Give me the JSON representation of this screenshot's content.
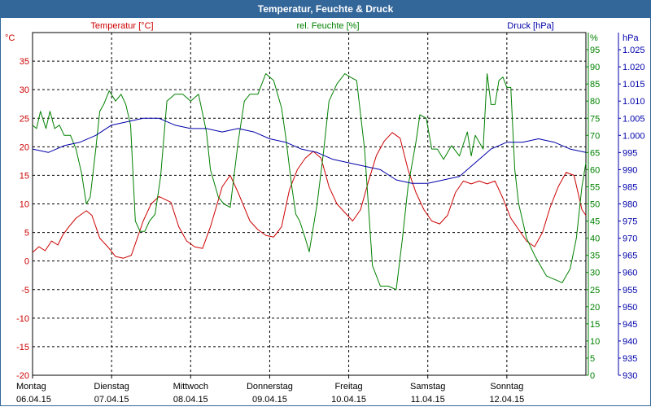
{
  "window": {
    "title": "Temperatur, Feuchte & Druck"
  },
  "colors": {
    "titlebar": "#336699",
    "temperature": "#cc0000",
    "humidity": "#008000",
    "pressure": "#0000aa",
    "grid": "#000000"
  },
  "chart_data": {
    "type": "line",
    "title": "Temperatur, Feuchte & Druck",
    "legend": {
      "temperature": "Temperatur [°C]",
      "humidity": "rel. Feuchte [%]",
      "pressure": "Druck [hPa]"
    },
    "axes": {
      "left": {
        "unit": "°C",
        "range": [
          -20,
          40
        ],
        "ticks": [
          "35",
          "30",
          "25",
          "20",
          "15",
          "10",
          "5",
          "0",
          "-5",
          "-10",
          "-15",
          "-20"
        ],
        "tick_values": [
          35,
          30,
          25,
          20,
          15,
          10,
          5,
          0,
          -5,
          -10,
          -15,
          -20
        ]
      },
      "mid": {
        "unit": "%",
        "range": [
          0,
          100
        ],
        "ticks": [
          "95",
          "90",
          "85",
          "80",
          "75",
          "70",
          "65",
          "60",
          "55",
          "50",
          "45",
          "40",
          "35",
          "30",
          "25",
          "20",
          "15",
          "10",
          "5",
          "0"
        ],
        "tick_values": [
          95,
          90,
          85,
          80,
          75,
          70,
          65,
          60,
          55,
          50,
          45,
          40,
          35,
          30,
          25,
          20,
          15,
          10,
          5,
          0
        ]
      },
      "right": {
        "unit": "hPa",
        "range": [
          930,
          1030
        ],
        "ticks": [
          "1.025",
          "1.020",
          "1.015",
          "1.010",
          "1.005",
          "1.000",
          "995",
          "990",
          "985",
          "980",
          "975",
          "970",
          "965",
          "960",
          "955",
          "950",
          "945",
          "940",
          "935",
          "930"
        ],
        "tick_values": [
          1025,
          1020,
          1015,
          1010,
          1005,
          1000,
          995,
          990,
          985,
          980,
          975,
          970,
          965,
          960,
          955,
          950,
          945,
          940,
          935,
          930
        ]
      }
    },
    "x_range_days": [
      0,
      7
    ],
    "days": [
      {
        "name": "Montag",
        "date": "06.04.15"
      },
      {
        "name": "Dienstag",
        "date": "07.04.15"
      },
      {
        "name": "Mittwoch",
        "date": "08.04.15"
      },
      {
        "name": "Donnerstag",
        "date": "09.04.15"
      },
      {
        "name": "Freitag",
        "date": "10.04.15"
      },
      {
        "name": "Samstag",
        "date": "11.04.15"
      },
      {
        "name": "Sonntag",
        "date": "12.04.15"
      }
    ],
    "series": [
      {
        "name": "Temperatur",
        "axis": "left",
        "color": "#cc0000",
        "x": [
          0,
          0.08,
          0.16,
          0.24,
          0.32,
          0.38,
          0.46,
          0.55,
          0.68,
          0.75,
          0.85,
          0.95,
          1.05,
          1.15,
          1.25,
          1.4,
          1.5,
          1.6,
          1.75,
          1.85,
          1.95,
          2.05,
          2.15,
          2.25,
          2.4,
          2.5,
          2.6,
          2.75,
          2.85,
          2.95,
          3.05,
          3.15,
          3.25,
          3.35,
          3.45,
          3.55,
          3.65,
          3.75,
          3.85,
          3.95,
          4.05,
          4.15,
          4.25,
          4.35,
          4.45,
          4.55,
          4.65,
          4.75,
          4.85,
          4.95,
          5.05,
          5.15,
          5.25,
          5.35,
          5.45,
          5.55,
          5.65,
          5.75,
          5.85,
          5.95,
          6.05,
          6.15,
          6.25,
          6.35,
          6.45,
          6.55,
          6.65,
          6.75,
          6.85,
          6.95,
          7.0
        ],
        "values": [
          1.5,
          2.5,
          1.8,
          3.5,
          2.8,
          4.5,
          6,
          7.5,
          8.8,
          8,
          4,
          2.5,
          0.8,
          0.5,
          1,
          7,
          10,
          11.3,
          10.3,
          6,
          3.5,
          2.5,
          2.2,
          6,
          13,
          15,
          12,
          7,
          5.5,
          4.5,
          4.2,
          6,
          12.5,
          16,
          18,
          19.2,
          18,
          13,
          10,
          8.5,
          7,
          9,
          14,
          18.5,
          21,
          22.5,
          21.5,
          16,
          12,
          9,
          7,
          6.5,
          8,
          12,
          14,
          13.5,
          14,
          13.5,
          14,
          11,
          7.5,
          5.5,
          3.5,
          2.5,
          5,
          9.5,
          13,
          15.5,
          15,
          9,
          8
        ]
      },
      {
        "name": "rel. Feuchte",
        "axis": "mid",
        "color": "#008000",
        "x": [
          0,
          0.05,
          0.1,
          0.17,
          0.22,
          0.28,
          0.34,
          0.4,
          0.48,
          0.55,
          0.62,
          0.68,
          0.73,
          0.8,
          0.85,
          0.9,
          0.97,
          1.05,
          1.12,
          1.18,
          1.24,
          1.3,
          1.36,
          1.42,
          1.48,
          1.55,
          1.62,
          1.7,
          1.8,
          1.9,
          2.0,
          2.1,
          2.2,
          2.25,
          2.35,
          2.42,
          2.5,
          2.6,
          2.68,
          2.75,
          2.85,
          2.95,
          3.05,
          3.15,
          3.2,
          3.28,
          3.33,
          3.38,
          3.45,
          3.5,
          3.6,
          3.68,
          3.75,
          3.85,
          3.95,
          4.02,
          4.1,
          4.2,
          4.3,
          4.4,
          4.5,
          4.6,
          4.68,
          4.75,
          4.85,
          4.9,
          4.98,
          5.05,
          5.12,
          5.2,
          5.3,
          5.4,
          5.5,
          5.55,
          5.6,
          5.65,
          5.7,
          5.75,
          5.8,
          5.85,
          5.9,
          5.95,
          6.0,
          6.05,
          6.1,
          6.15,
          6.2,
          6.25,
          6.35,
          6.45,
          6.5,
          6.6,
          6.7,
          6.8,
          6.88,
          6.95,
          7.0
        ],
        "values": [
          73,
          72,
          77,
          72,
          77,
          72,
          73,
          70,
          70,
          66,
          59,
          50,
          52,
          66,
          77,
          79,
          83,
          80,
          82,
          79,
          73,
          45,
          42,
          42,
          45,
          47,
          58,
          80,
          82,
          82,
          80,
          82,
          71,
          60,
          52,
          50,
          49,
          68,
          80,
          82,
          82,
          88,
          86,
          78,
          70,
          55,
          47,
          45,
          40,
          36,
          50,
          65,
          80,
          85,
          88,
          87,
          86,
          66,
          32,
          26,
          26,
          25,
          40,
          55,
          68,
          76,
          75,
          66,
          66,
          63,
          67,
          64,
          71,
          64,
          70,
          68,
          66,
          88,
          79,
          79,
          86,
          87,
          84,
          84,
          60,
          50,
          45,
          40,
          35,
          31,
          29,
          28,
          27,
          31,
          40,
          55,
          62
        ]
      },
      {
        "name": "Druck",
        "axis": "right",
        "color": "#0000aa",
        "x": [
          0,
          0.2,
          0.4,
          0.6,
          0.8,
          1.0,
          1.2,
          1.4,
          1.6,
          1.8,
          2.0,
          2.2,
          2.4,
          2.6,
          2.8,
          3.0,
          3.2,
          3.4,
          3.6,
          3.8,
          4.0,
          4.2,
          4.4,
          4.6,
          4.8,
          5.0,
          5.2,
          5.4,
          5.6,
          5.8,
          6.0,
          6.2,
          6.4,
          6.6,
          6.8,
          7.0
        ],
        "values": [
          996,
          995,
          997,
          998,
          1000,
          1003,
          1004,
          1005,
          1005,
          1003,
          1002,
          1002,
          1001,
          1002,
          1001,
          999,
          998,
          996,
          995,
          993,
          992,
          991,
          990,
          987,
          986,
          986,
          987,
          988,
          992,
          996,
          998,
          998,
          999,
          998,
          996,
          995
        ]
      }
    ]
  }
}
